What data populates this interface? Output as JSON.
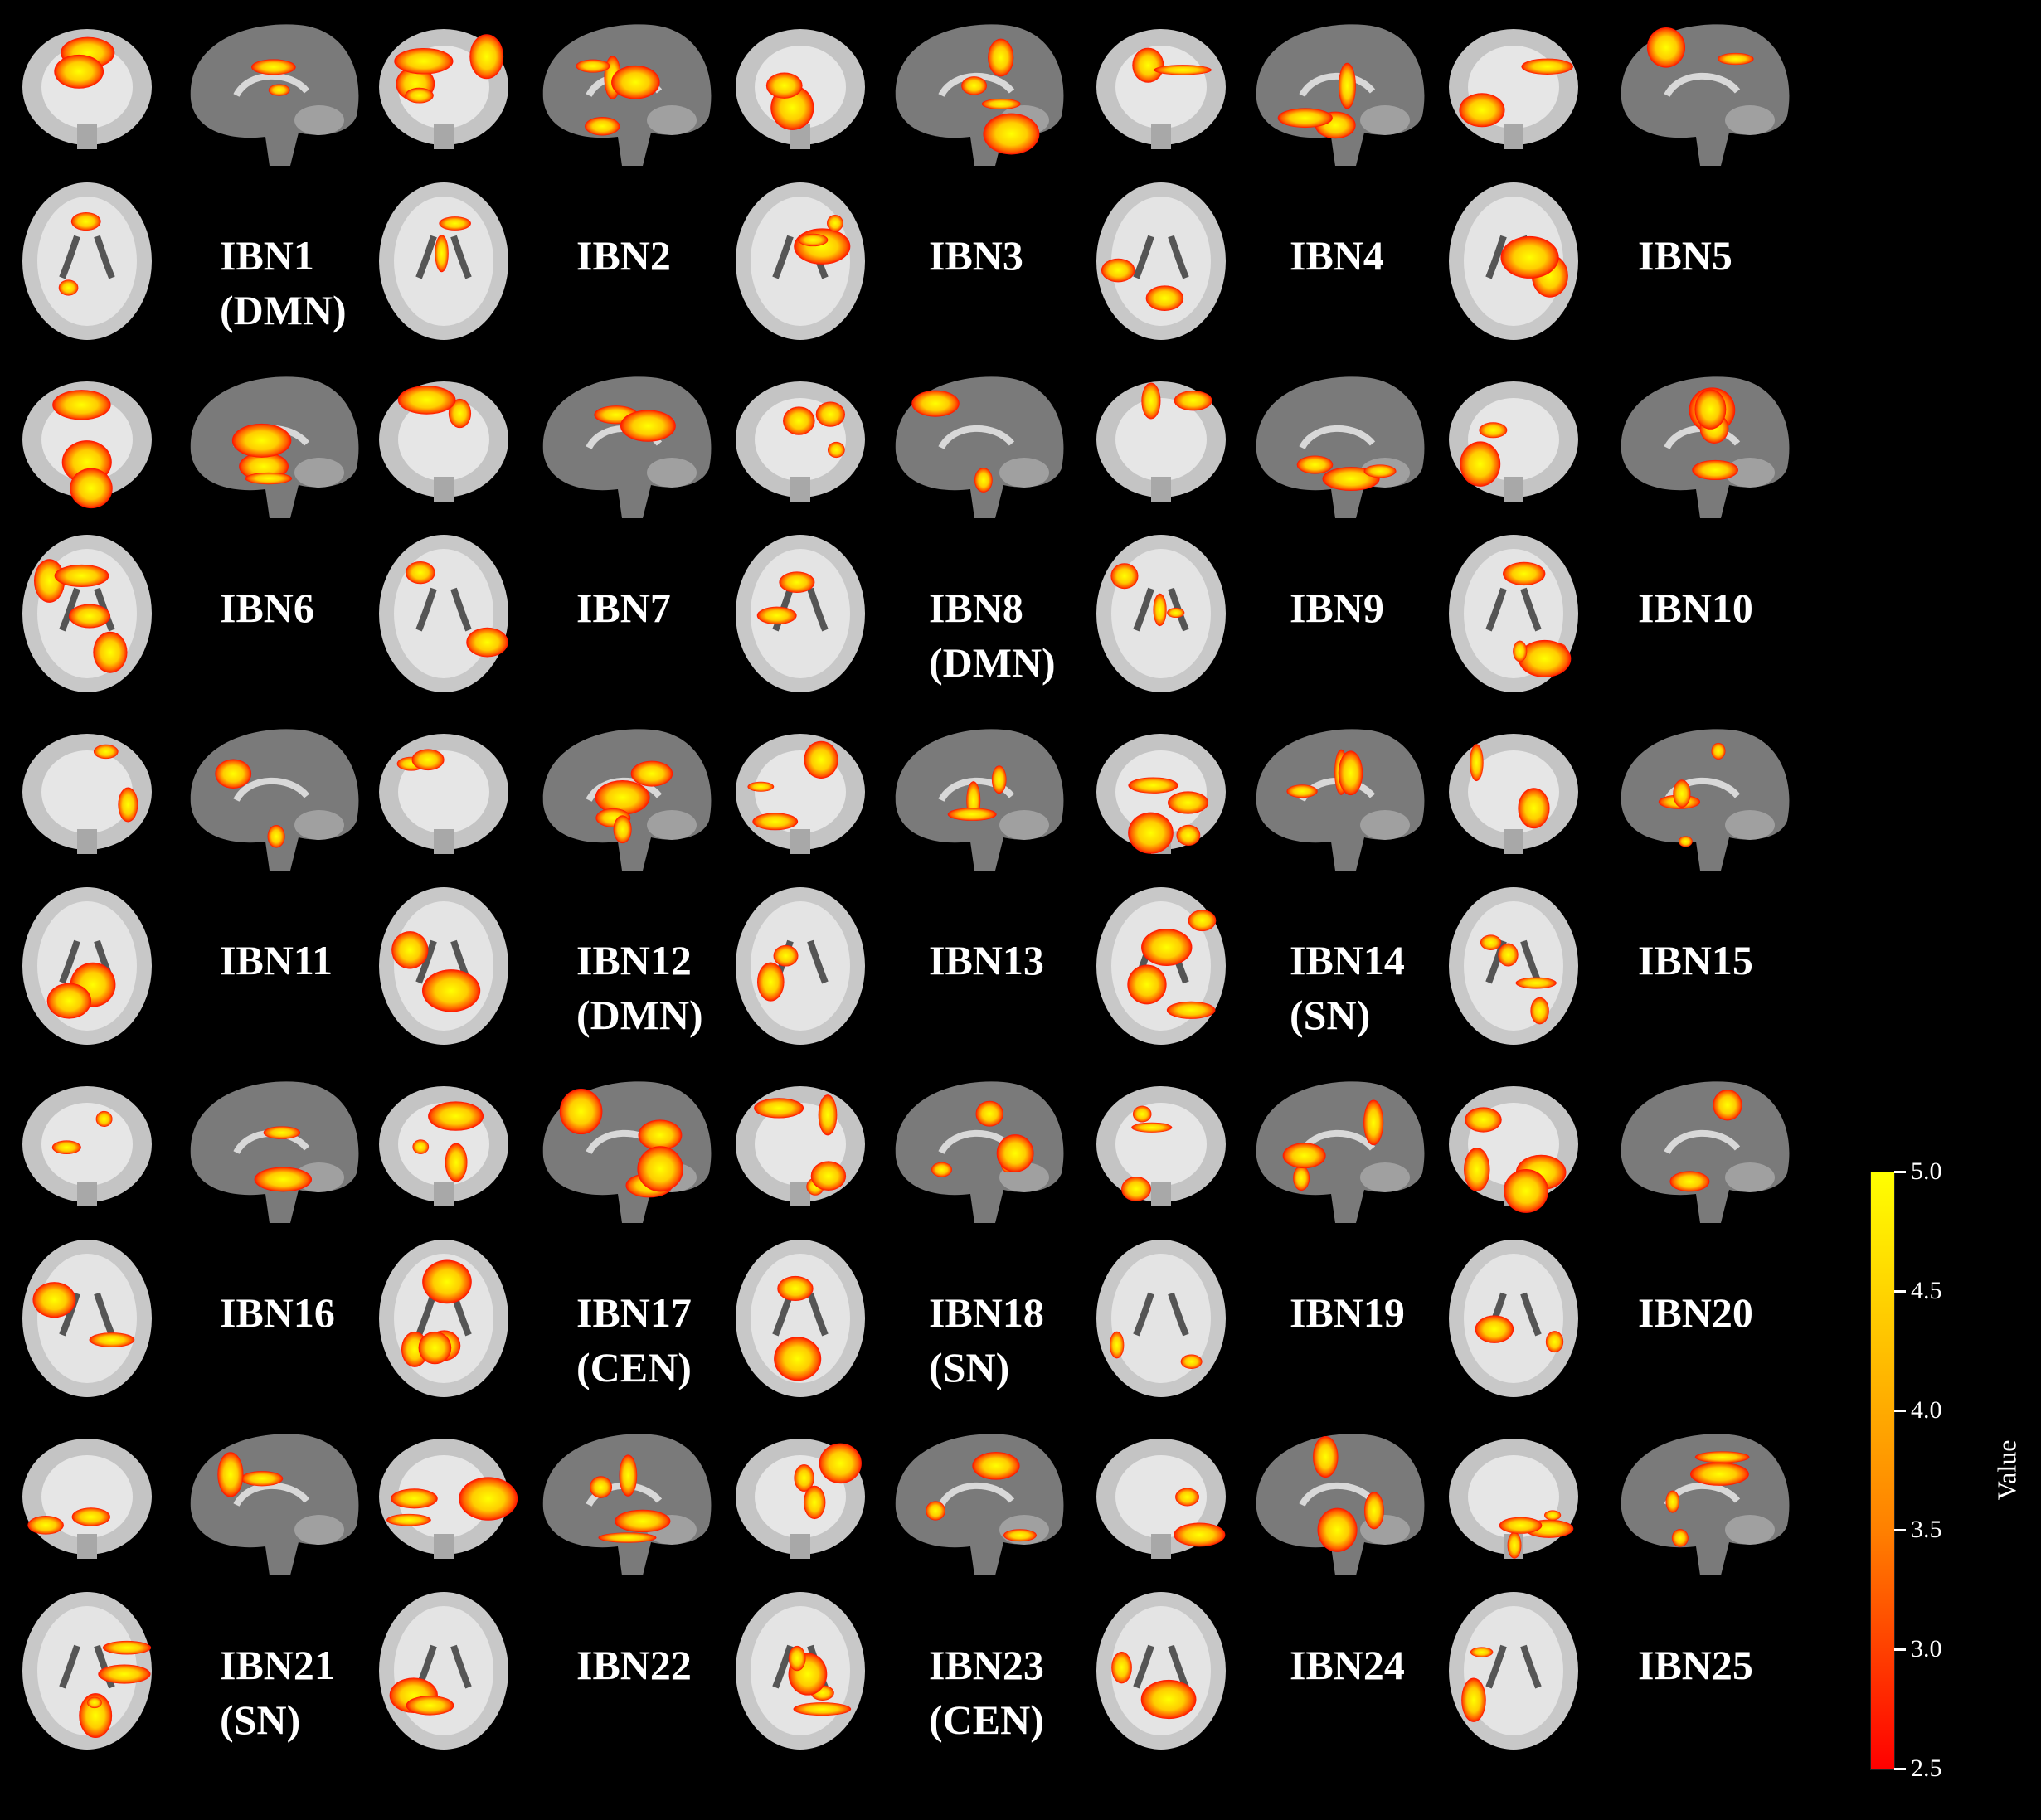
{
  "colors": {
    "background": "#000000",
    "brain_outer": "#c8c8c8",
    "brain_inner": "#8c8c8c",
    "activation_low": "#ff1a00",
    "activation_mid": "#ff8c00",
    "activation_high": "#ffff00"
  },
  "colorbar": {
    "title": "Value",
    "min": 2.5,
    "max": 5.0,
    "ticks": [
      "5.0",
      "4.5",
      "4.0",
      "3.5",
      "3.0",
      "2.5"
    ]
  },
  "networks": [
    {
      "id": "IBN1",
      "tag": "(DMN)"
    },
    {
      "id": "IBN2",
      "tag": ""
    },
    {
      "id": "IBN3",
      "tag": ""
    },
    {
      "id": "IBN4",
      "tag": ""
    },
    {
      "id": "IBN5",
      "tag": ""
    },
    {
      "id": "IBN6",
      "tag": ""
    },
    {
      "id": "IBN7",
      "tag": ""
    },
    {
      "id": "IBN8",
      "tag": "(DMN)"
    },
    {
      "id": "IBN9",
      "tag": ""
    },
    {
      "id": "IBN10",
      "tag": ""
    },
    {
      "id": "IBN11",
      "tag": ""
    },
    {
      "id": "IBN12",
      "tag": "(DMN)"
    },
    {
      "id": "IBN13",
      "tag": ""
    },
    {
      "id": "IBN14",
      "tag": "(SN)"
    },
    {
      "id": "IBN15",
      "tag": ""
    },
    {
      "id": "IBN16",
      "tag": ""
    },
    {
      "id": "IBN17",
      "tag": "(CEN)"
    },
    {
      "id": "IBN18",
      "tag": "(SN)"
    },
    {
      "id": "IBN19",
      "tag": ""
    },
    {
      "id": "IBN20",
      "tag": ""
    },
    {
      "id": "IBN21",
      "tag": "(SN)"
    },
    {
      "id": "IBN22",
      "tag": ""
    },
    {
      "id": "IBN23",
      "tag": "(CEN)"
    },
    {
      "id": "IBN24",
      "tag": ""
    },
    {
      "id": "IBN25",
      "tag": ""
    }
  ]
}
